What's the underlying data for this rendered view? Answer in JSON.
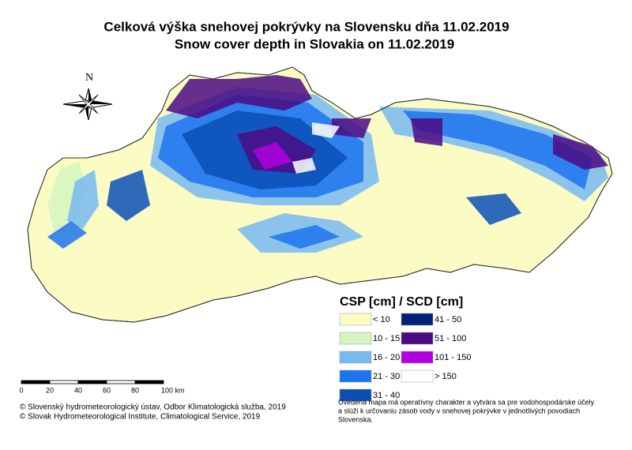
{
  "title": [
    "Celková výška snehovej pokrývky na Slovensku dňa 11.02.2019",
    "Snow cover depth in Slovakia on 11.02.2019"
  ],
  "north": "N",
  "legend": {
    "title": "CSP [cm] / SCD [cm]",
    "items": [
      {
        "label": "< 10",
        "color": "#fbfcc4"
      },
      {
        "label": "10 - 15",
        "color": "#d3f6c2"
      },
      {
        "label": "16 - 20",
        "color": "#78b9f2"
      },
      {
        "label": "21 - 30",
        "color": "#1c74ee"
      },
      {
        "label": "31 - 40",
        "color": "#0b4fb6"
      },
      {
        "label": "41 - 50",
        "color": "#00237a"
      },
      {
        "label": "51 - 100",
        "color": "#4b0a82"
      },
      {
        "label": "101 - 150",
        "color": "#b100e0"
      },
      {
        "label": "> 150",
        "color": "#ffffff"
      }
    ]
  },
  "scale": [
    "0",
    "20",
    "40",
    "60",
    "80",
    "100 km"
  ],
  "copyright": [
    "© Slovenský hydrometeorologický ústav, Odbor Klimatologická služba, 2019",
    "© Slovak Hydrometeorological Institute, Climatological Service, 2019"
  ],
  "note": [
    "Uvedená mapa má operatívny charakter a vytvára sa pre vodohospodárske účely",
    " a slúži k určovaniu zásob vody v snehovej pokrývke v jednotlivých povodiach",
    "Slovenska."
  ]
}
